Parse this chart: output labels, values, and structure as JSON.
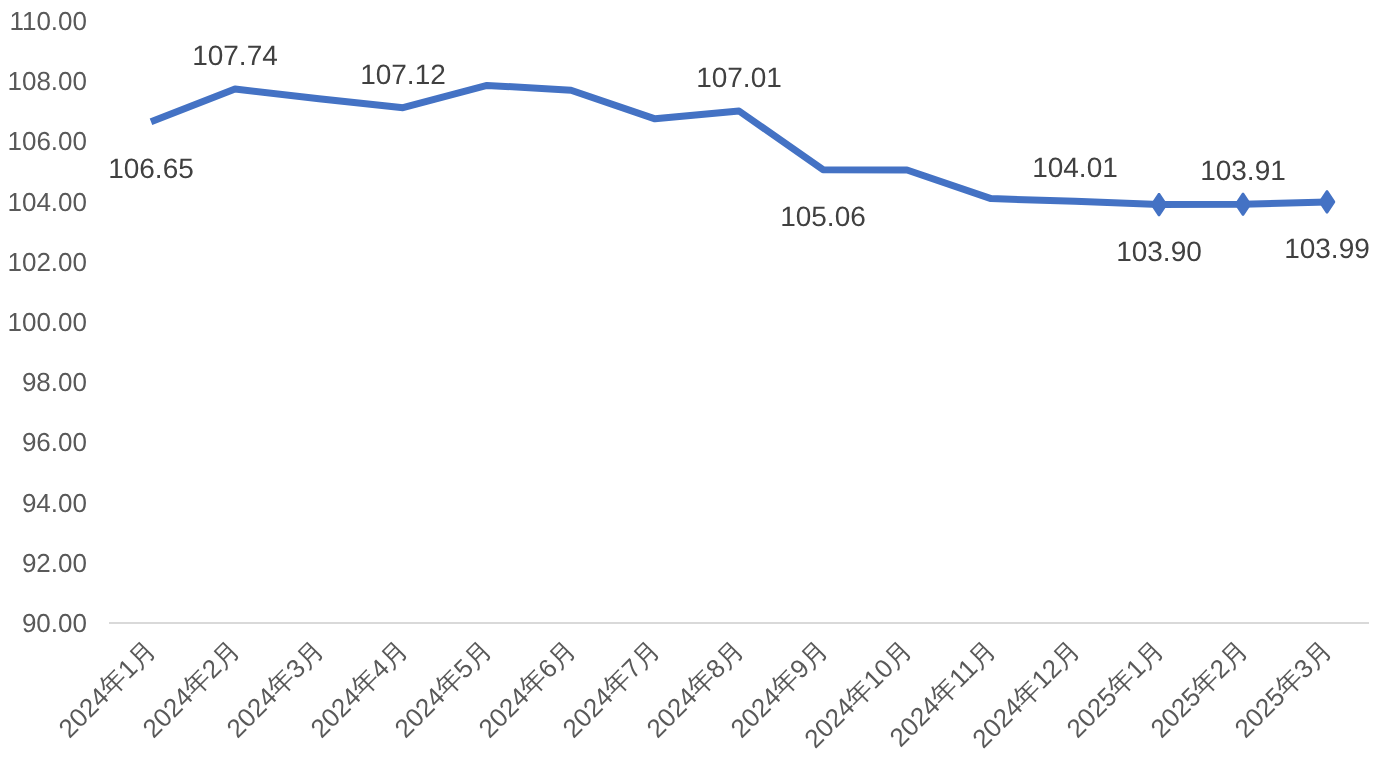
{
  "chart_data": {
    "type": "line",
    "categories": [
      "2024年1月",
      "2024年2月",
      "2024年3月",
      "2024年4月",
      "2024年5月",
      "2024年6月",
      "2024年7月",
      "2024年8月",
      "2024年9月",
      "2024年10月",
      "2024年11月",
      "2024年12月",
      "2025年1月",
      "2025年2月",
      "2025年3月"
    ],
    "series": [
      {
        "color": "#4472c4",
        "values": [
          106.65,
          107.74,
          107.42,
          107.12,
          107.86,
          107.7,
          106.75,
          107.01,
          105.06,
          105.05,
          104.1,
          104.01,
          103.9,
          103.91,
          103.99
        ],
        "value_labels": [
          "106.65",
          "107.74",
          null,
          "107.12",
          null,
          null,
          null,
          "107.01",
          "105.06",
          null,
          null,
          "104.01",
          "103.90",
          "103.91",
          "103.99"
        ]
      },
      {
        "type": "scatter",
        "marker": "diamond",
        "color": "#4472c4",
        "x": [
          "2025年1月",
          "2025年2月",
          "2025年3月"
        ],
        "values": [
          103.9,
          103.91,
          103.99
        ]
      }
    ],
    "ylim": [
      90,
      110
    ],
    "yticks": [
      {
        "value": 90,
        "label": "90.00"
      },
      {
        "value": 92,
        "label": "92.00"
      },
      {
        "value": 94,
        "label": "94.00"
      },
      {
        "value": 96,
        "label": "96.00"
      },
      {
        "value": 98,
        "label": "98.00"
      },
      {
        "value": 100,
        "label": "100.00"
      },
      {
        "value": 102,
        "label": "102.00"
      },
      {
        "value": 104,
        "label": "104.00"
      },
      {
        "value": 106,
        "label": "106.00"
      },
      {
        "value": 108,
        "label": "108.00"
      },
      {
        "value": 110,
        "label": "110.00"
      }
    ],
    "grid": false
  }
}
